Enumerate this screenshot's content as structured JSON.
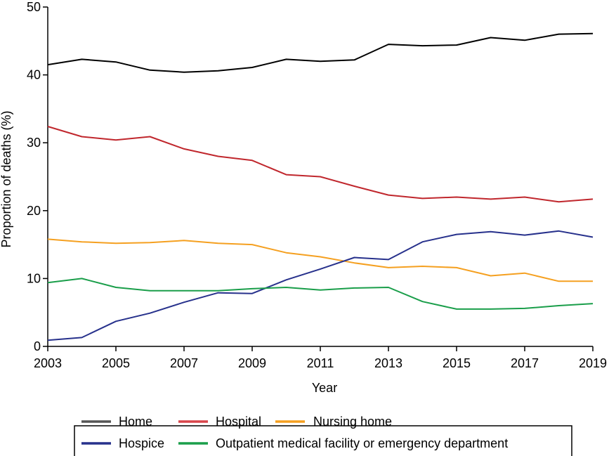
{
  "chart_data": {
    "type": "line",
    "xlabel": "Year",
    "ylabel": "Proportion of deaths (%)",
    "x": [
      2003,
      2004,
      2005,
      2006,
      2007,
      2008,
      2009,
      2010,
      2011,
      2012,
      2013,
      2014,
      2015,
      2016,
      2017,
      2018,
      2019
    ],
    "x_ticks": [
      2003,
      2005,
      2007,
      2009,
      2011,
      2013,
      2015,
      2017,
      2019
    ],
    "y_ticks": [
      0,
      10,
      20,
      30,
      40,
      50
    ],
    "xlim": [
      2003,
      2019
    ],
    "ylim": [
      0,
      50
    ],
    "grid": false,
    "legend_position": "bottom",
    "series": [
      {
        "name": "Home",
        "color": "#000000",
        "values": [
          41.5,
          42.3,
          41.9,
          40.7,
          40.4,
          40.6,
          41.1,
          42.3,
          42.0,
          42.2,
          44.5,
          44.3,
          44.4,
          45.5,
          45.1,
          46.0,
          46.1
        ]
      },
      {
        "name": "Hospital",
        "color": "#c0272d",
        "values": [
          32.4,
          30.9,
          30.4,
          30.9,
          29.1,
          28.0,
          27.4,
          25.3,
          25.0,
          23.6,
          22.3,
          21.8,
          22.0,
          21.7,
          22.0,
          21.3,
          21.7
        ]
      },
      {
        "name": "Nursing home",
        "color": "#f5a020",
        "values": [
          15.8,
          15.4,
          15.2,
          15.3,
          15.6,
          15.2,
          15.0,
          13.8,
          13.2,
          12.3,
          11.6,
          11.8,
          11.6,
          10.4,
          10.8,
          9.6,
          9.6
        ]
      },
      {
        "name": "Hospice",
        "color": "#27318c",
        "values": [
          0.9,
          1.3,
          3.7,
          4.9,
          6.5,
          7.9,
          7.8,
          9.8,
          11.4,
          13.1,
          12.8,
          15.4,
          16.5,
          16.9,
          16.4,
          17.0,
          16.1
        ]
      },
      {
        "name": "Outpatient medical facility or emergency department",
        "color": "#1a9e4a",
        "values": [
          9.4,
          10.0,
          8.7,
          8.2,
          8.2,
          8.2,
          8.5,
          8.7,
          8.3,
          8.6,
          8.7,
          6.6,
          5.5,
          5.5,
          5.6,
          6.0,
          6.3
        ]
      }
    ],
    "legend": [
      {
        "label": "Home",
        "color": "#555555"
      },
      {
        "label": "Hospital",
        "color": "#d9454b"
      },
      {
        "label": "Nursing home",
        "color": "#f5a020"
      },
      {
        "label": "Hospice",
        "color": "#27318c"
      },
      {
        "label": "Outpatient medical facility or emergency department",
        "color": "#1a9e4a"
      }
    ]
  }
}
